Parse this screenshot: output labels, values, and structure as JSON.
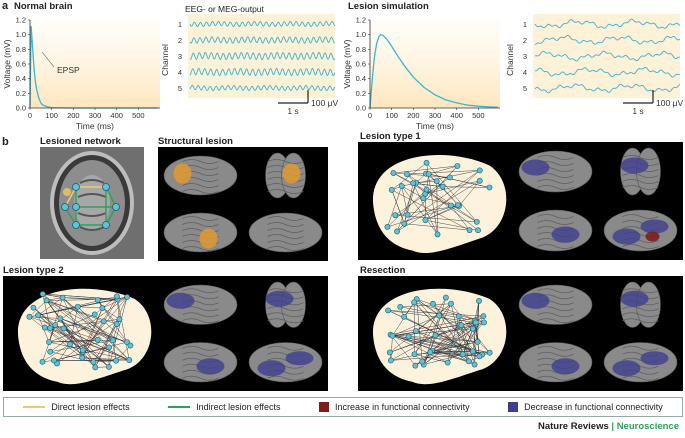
{
  "panel_a": {
    "letter": "a",
    "normal_title": "Normal brain",
    "lesion_title": "Lesion simulation",
    "eeg_title": "EEG- or MEG-output",
    "epsp_label": "EPSP",
    "ylabel": "Voltage (mV)",
    "xlabel": "Time (ms)",
    "channel_label": "Channel",
    "scale_time": "1 s",
    "scale_volt": "100 μV",
    "channels": [
      "1",
      "2",
      "3",
      "4",
      "5"
    ]
  },
  "panel_b": {
    "letter": "b",
    "lesioned_network": "Lesioned network",
    "structural_lesion": "Structural lesion",
    "lesion_type_1": "Lesion type 1",
    "lesion_type_2": "Lesion type 2",
    "resection": "Resection"
  },
  "legend": {
    "direct": "Direct lesion effects",
    "indirect": "Indirect lesion effects",
    "increase": "Increase in functional connectivity",
    "decrease": "Decrease in functional connectivity"
  },
  "colors": {
    "trace": "#3bb6cf",
    "direct": "#f0c86a",
    "indirect": "#2aa35a",
    "increase": "#7a1e1e",
    "decrease": "#3f3d8f",
    "node": "#5ec3d6",
    "brain_fill": "#fdf3dc"
  },
  "footer": {
    "journal": "Nature Reviews",
    "separator": " | ",
    "section": "Neuroscience"
  },
  "chart_data": [
    {
      "type": "line",
      "name": "Normal brain",
      "xlabel": "Time (ms)",
      "ylabel": "Voltage (mV)",
      "xlim": [
        0,
        600
      ],
      "ylim": [
        0,
        1.2
      ],
      "xticks": [
        0,
        100,
        200,
        300,
        400,
        500
      ],
      "yticks": [
        0,
        0.2,
        0.4,
        0.6,
        0.8,
        1.0,
        1.2
      ],
      "x": [
        0,
        5,
        10,
        15,
        20,
        25,
        30,
        40,
        50,
        60,
        80,
        100,
        150,
        200,
        300,
        400,
        500,
        590
      ],
      "y": [
        0,
        1.12,
        0.9,
        0.68,
        0.5,
        0.36,
        0.26,
        0.14,
        0.07,
        0.04,
        0.015,
        0.006,
        0.001,
        0,
        0,
        0,
        0,
        0
      ]
    },
    {
      "type": "line",
      "name": "Lesion simulation",
      "xlabel": "Time (ms)",
      "ylabel": "Voltage (mV)",
      "xlim": [
        0,
        600
      ],
      "ylim": [
        0,
        1.2
      ],
      "xticks": [
        0,
        100,
        200,
        300,
        400,
        500
      ],
      "yticks": [
        0,
        0.2,
        0.4,
        0.6,
        0.8,
        1.0,
        1.2
      ],
      "x": [
        0,
        10,
        20,
        30,
        40,
        50,
        60,
        80,
        100,
        130,
        160,
        200,
        250,
        300,
        350,
        400,
        450,
        500,
        550,
        590
      ],
      "y": [
        0,
        0.38,
        0.68,
        0.87,
        0.97,
        1.0,
        0.99,
        0.93,
        0.84,
        0.7,
        0.57,
        0.42,
        0.28,
        0.18,
        0.11,
        0.07,
        0.04,
        0.025,
        0.015,
        0.01
      ]
    }
  ]
}
